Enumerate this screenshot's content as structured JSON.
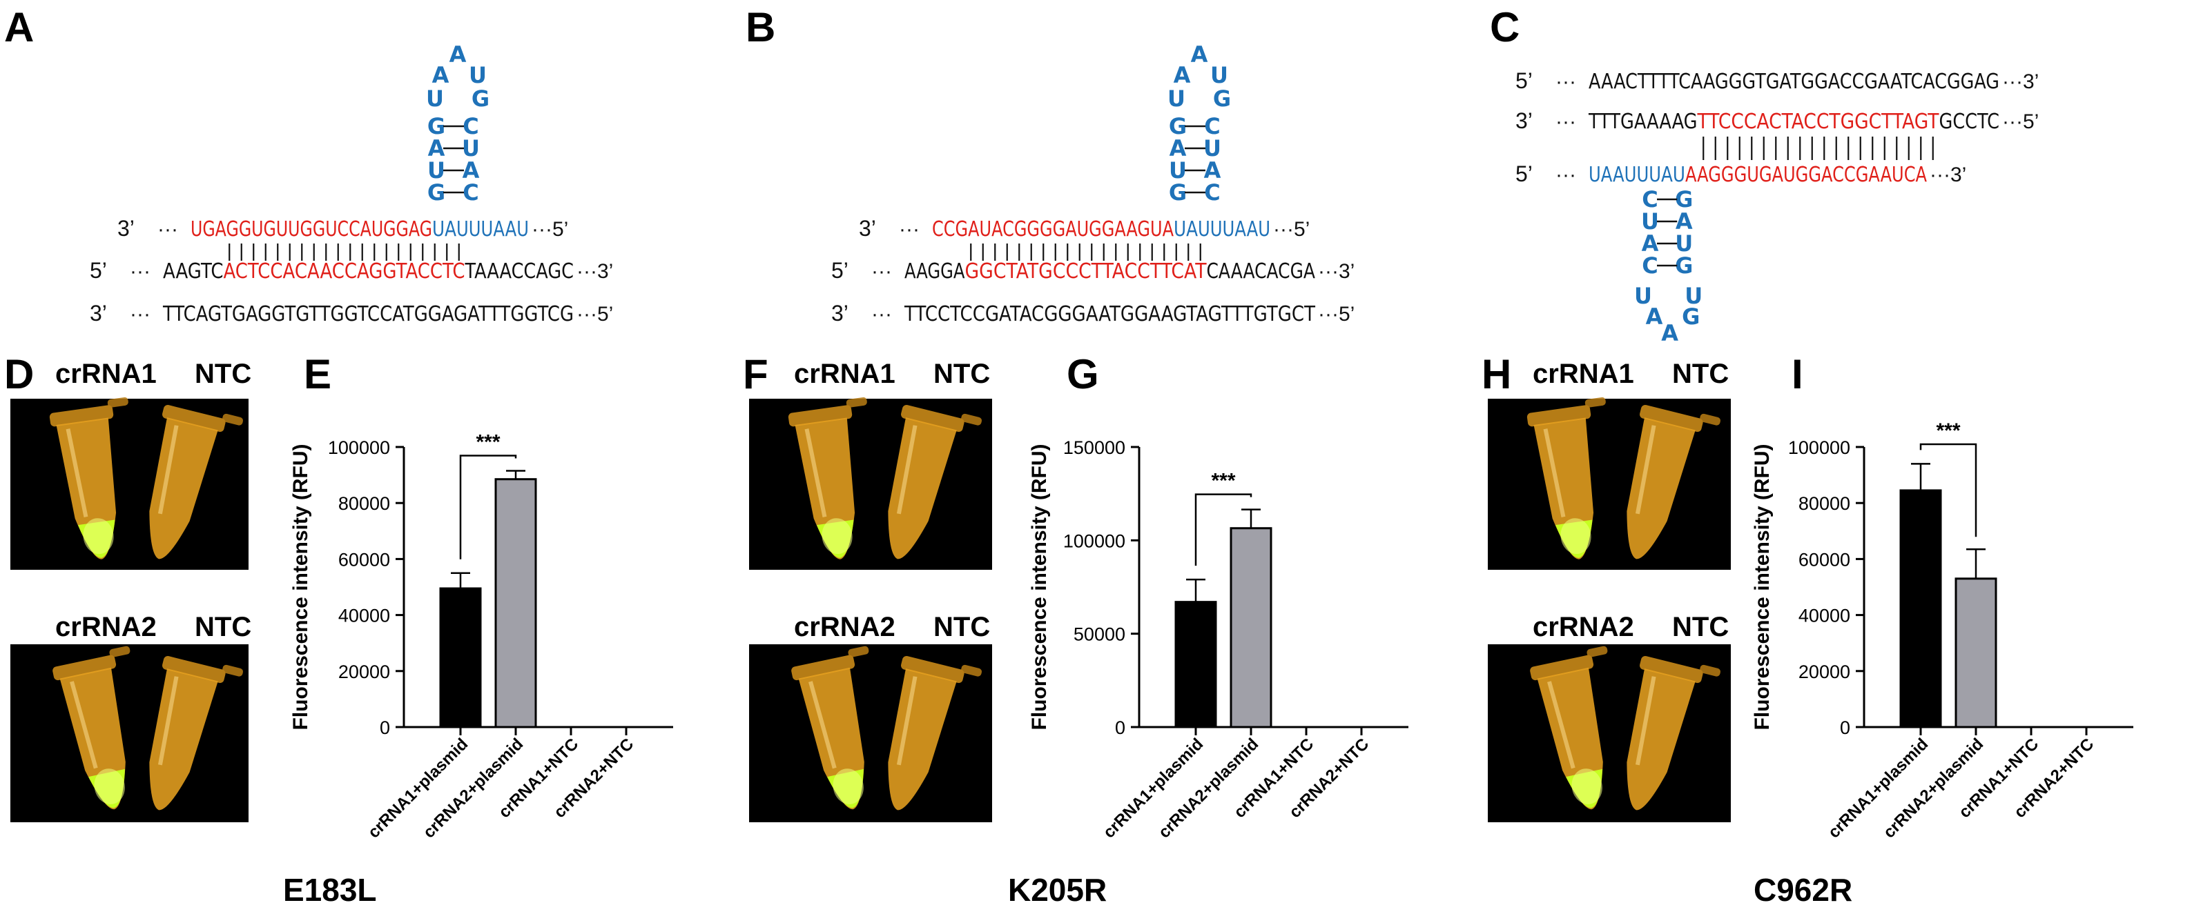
{
  "panels": {
    "A": {
      "letter": "A",
      "rows": [
        {
          "p": "3’",
          "dots": "···",
          "seg": [
            [
              "UGAGGUGUUGGUCCAUGGAG",
              "red"
            ],
            [
              "UA",
              "blue"
            ],
            [
              "UUUAAU",
              "blue"
            ]
          ],
          "end": "···5’"
        },
        {
          "p": "5’",
          "dots": "···",
          "seg": [
            [
              "AAGTC",
              "black"
            ],
            [
              "ACTCCACAACCAGGTACCTC",
              "red"
            ],
            [
              "TAAACCAGC",
              "black"
            ]
          ],
          "end": "···3’"
        },
        {
          "p": "3’",
          "dots": "···",
          "seg": [
            [
              "TTCAGTGAGGTGTTGGTCCATGGAGATTTGGTCG",
              "black"
            ]
          ],
          "end": "···5’"
        }
      ],
      "hairpin": {
        "loop": [
          "G",
          "A",
          "A",
          "U",
          "U"
        ],
        "stem_left": [
          "G",
          "U",
          "A",
          "G"
        ],
        "stem_right": [
          "C",
          "A",
          "U",
          "C"
        ]
      }
    },
    "B": {
      "letter": "B",
      "rows": [
        {
          "p": "3’",
          "dots": "···",
          "seg": [
            [
              "CCGAUACGGGGAUGGAAGUA",
              "red"
            ],
            [
              "UA",
              "blue"
            ],
            [
              "UUUAAU",
              "blue"
            ]
          ],
          "end": "···5’"
        },
        {
          "p": "5’",
          "dots": "···",
          "seg": [
            [
              "AAGGA",
              "black"
            ],
            [
              "GGCTATGCCCTTACCTTCAT",
              "red"
            ],
            [
              "CAAACACGA",
              "black"
            ]
          ],
          "end": "···3’"
        },
        {
          "p": "3’",
          "dots": "···",
          "seg": [
            [
              "TTCCTCCGATACGGGAATGGAAGTAGTTTGTGCT",
              "black"
            ]
          ],
          "end": "···5’"
        }
      ],
      "hairpin": {
        "loop": [
          "G",
          "A",
          "A",
          "U",
          "U"
        ],
        "stem_left": [
          "G",
          "U",
          "A",
          "G"
        ],
        "stem_right": [
          "C",
          "A",
          "U",
          "C"
        ]
      }
    },
    "C": {
      "letter": "C",
      "rows": [
        {
          "p": "5’",
          "dots": "···",
          "seg": [
            [
              "AAACTTTTCAAGGGTGATGGACCGAATCACGGAG",
              "black"
            ]
          ],
          "end": "···3’"
        },
        {
          "p": "3’",
          "dots": "···",
          "seg": [
            [
              "TTTGAAAAG",
              "black"
            ],
            [
              "TTCCCACTACCTGGCTTAGT",
              "red"
            ],
            [
              "GCCTC",
              "black"
            ]
          ],
          "end": "···5’"
        },
        {
          "p": "5’",
          "dots": "···",
          "seg": [
            [
              "UAAUUU",
              "blue"
            ],
            [
              "AU",
              "blue"
            ],
            [
              "AAGGGUGAUGGACCGAAUCA",
              "red"
            ]
          ],
          "end": "···3’"
        }
      ],
      "hairpin": {
        "loop": [
          "U",
          "A",
          "A",
          "G",
          "U"
        ],
        "stem_left": [
          "C",
          "U",
          "A",
          "C"
        ],
        "stem_right": [
          "G",
          "A",
          "U",
          "G"
        ]
      }
    },
    "D": {
      "letter": "D",
      "top_left": "crRNA1",
      "top_right": "NTC",
      "bottom_left": "crRNA2",
      "bottom_right": "NTC"
    },
    "F": {
      "letter": "F",
      "top_left": "crRNA1",
      "top_right": "NTC",
      "bottom_left": "crRNA2",
      "bottom_right": "NTC"
    },
    "H": {
      "letter": "H",
      "top_left": "crRNA1",
      "top_right": "NTC",
      "bottom_left": "crRNA2",
      "bottom_right": "NTC"
    }
  },
  "chart_data": [
    {
      "panel": "E",
      "type": "bar",
      "categories": [
        "crRNA1+plasmid",
        "crRNA2+plasmid",
        "crRNA1+NTC",
        "crRNA2+NTC"
      ],
      "values": [
        49500,
        88500,
        0,
        0
      ],
      "errors": [
        5500,
        3000,
        0,
        0
      ],
      "colors": [
        "#000000",
        "#a0a0a8",
        "#000000",
        "#a0a0a8"
      ],
      "ylabel": "Fluorescence intensity (RFU)",
      "ylim": [
        0,
        100000
      ],
      "yticks": [
        "0",
        "20000",
        "40000",
        "60000",
        "80000",
        "100000"
      ],
      "significance": {
        "from": 0,
        "to": 1,
        "label": "***"
      },
      "mutation": "E183L"
    },
    {
      "panel": "G",
      "type": "bar",
      "categories": [
        "crRNA1+plasmid",
        "crRNA2+plasmid",
        "crRNA1+NTC",
        "crRNA2+NTC"
      ],
      "values": [
        67000,
        106500,
        0,
        0
      ],
      "errors": [
        12000,
        10000,
        0,
        0
      ],
      "colors": [
        "#000000",
        "#a0a0a8",
        "#000000",
        "#a0a0a8"
      ],
      "ylabel": "Fluorescence intensity (RFU)",
      "ylim": [
        0,
        150000
      ],
      "yticks": [
        "0",
        "50000",
        "100000",
        "150000"
      ],
      "significance": {
        "from": 0,
        "to": 1,
        "label": "***"
      },
      "mutation": "K205R"
    },
    {
      "panel": "I",
      "type": "bar",
      "categories": [
        "crRNA1+plasmid",
        "crRNA2+plasmid",
        "crRNA1+NTC",
        "crRNA2+NTC"
      ],
      "values": [
        84500,
        53000,
        0,
        0
      ],
      "errors": [
        9500,
        10500,
        0,
        0
      ],
      "colors": [
        "#000000",
        "#a0a0a8",
        "#000000",
        "#a0a0a8"
      ],
      "ylabel": "Fluorescence intensity (RFU)",
      "ylim": [
        0,
        100000
      ],
      "yticks": [
        "0",
        "20000",
        "40000",
        "60000",
        "80000",
        "100000"
      ],
      "significance": {
        "from": 0,
        "to": 1,
        "label": "***"
      },
      "mutation": "C962R"
    }
  ],
  "colors": {
    "red": "#e0201a",
    "blue": "#1f72b8",
    "black": "#111111",
    "tube": "#e6a020",
    "glow": "#c6ff20"
  }
}
